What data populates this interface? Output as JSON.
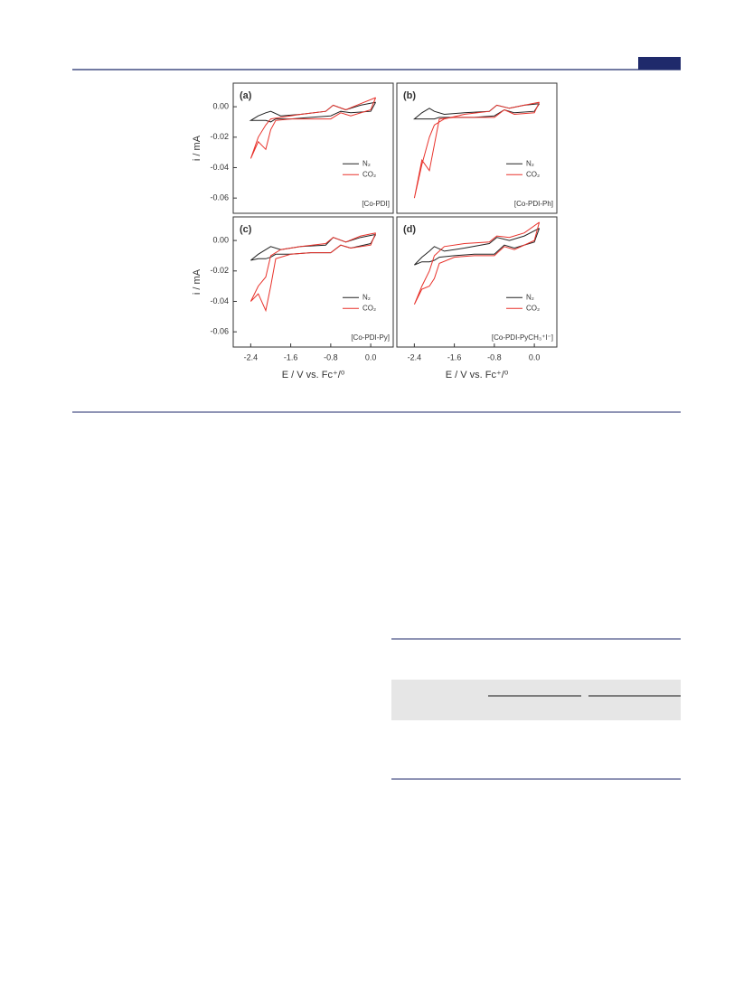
{
  "chart_data": [
    {
      "type": "line",
      "panel_label": "(a)",
      "annotation": "[Co-PDI]",
      "ylabel": "i / mA",
      "xlim": [
        -2.75,
        0.45
      ],
      "ylim": [
        -0.07,
        0.0155
      ],
      "yticks": [
        {
          "value": 0,
          "label": "0.00"
        },
        {
          "value": -0.02,
          "label": "-0.02"
        },
        {
          "value": -0.04,
          "label": "-0.04"
        },
        {
          "value": -0.06,
          "label": "-0.06"
        }
      ],
      "legend": "right",
      "x": [
        0.1,
        0.0,
        -0.4,
        -0.6,
        -0.8,
        -1.2,
        -1.6,
        -1.9,
        -2.0,
        -2.1,
        -2.25,
        -2.4,
        -2.25,
        -2.1,
        -2.0,
        -1.8,
        -1.4,
        -0.9,
        -0.75,
        -0.5,
        -0.2,
        0.1
      ],
      "series": [
        {
          "name": "N₂",
          "color": "#222222",
          "values": [
            0.003,
            -0.003,
            -0.004,
            -0.003,
            -0.006,
            -0.007,
            -0.008,
            -0.008,
            -0.01,
            -0.009,
            -0.009,
            -0.009,
            -0.006,
            -0.004,
            -0.003,
            -0.006,
            -0.005,
            -0.003,
            0.001,
            -0.002,
            0.001,
            0.003
          ]
        },
        {
          "name": "CO₂",
          "color": "#e8322b",
          "values": [
            0.006,
            -0.002,
            -0.006,
            -0.004,
            -0.008,
            -0.008,
            -0.008,
            -0.009,
            -0.015,
            -0.028,
            -0.023,
            -0.034,
            -0.02,
            -0.012,
            -0.008,
            -0.007,
            -0.005,
            -0.003,
            0.001,
            -0.002,
            0.002,
            0.006
          ]
        }
      ]
    },
    {
      "type": "line",
      "panel_label": "(b)",
      "annotation": "[Co-PDI-Ph]",
      "xlim": [
        -2.75,
        0.45
      ],
      "ylim": [
        -0.07,
        0.0155
      ],
      "legend": "right",
      "x": [
        0.1,
        0.0,
        -0.4,
        -0.6,
        -0.8,
        -1.2,
        -1.6,
        -1.9,
        -2.0,
        -2.1,
        -2.25,
        -2.4,
        -2.25,
        -2.1,
        -2.0,
        -1.8,
        -1.4,
        -0.9,
        -0.75,
        -0.5,
        -0.2,
        0.1
      ],
      "series": [
        {
          "name": "N₂",
          "color": "#222222",
          "values": [
            0.002,
            -0.003,
            -0.004,
            -0.002,
            -0.006,
            -0.007,
            -0.007,
            -0.007,
            -0.008,
            -0.008,
            -0.008,
            -0.008,
            -0.004,
            -0.001,
            -0.003,
            -0.005,
            -0.004,
            -0.003,
            0.001,
            -0.001,
            0.001,
            0.002
          ]
        },
        {
          "name": "CO₂",
          "color": "#e8322b",
          "values": [
            0.003,
            -0.004,
            -0.005,
            -0.002,
            -0.007,
            -0.007,
            -0.007,
            -0.008,
            -0.025,
            -0.042,
            -0.035,
            -0.06,
            -0.038,
            -0.02,
            -0.012,
            -0.008,
            -0.005,
            -0.003,
            0.001,
            -0.001,
            0.001,
            0.003
          ]
        }
      ]
    },
    {
      "type": "line",
      "panel_label": "(c)",
      "annotation": "[Co-PDI-Py]",
      "ylabel": "i / mA",
      "xlabel": "E / V vs. Fc⁺/⁰",
      "xlim": [
        -2.75,
        0.45
      ],
      "ylim": [
        -0.07,
        0.0155
      ],
      "xticks": [
        -2.4,
        -1.6,
        -0.8,
        {
          "value": 0,
          "label": "0.0"
        }
      ],
      "yticks": [
        {
          "value": 0,
          "label": "0.00"
        },
        {
          "value": -0.02,
          "label": "-0.02"
        },
        {
          "value": -0.04,
          "label": "-0.04"
        },
        {
          "value": -0.06,
          "label": "-0.06"
        }
      ],
      "legend": "right",
      "x": [
        0.1,
        0.0,
        -0.4,
        -0.6,
        -0.8,
        -1.2,
        -1.6,
        -1.9,
        -2.0,
        -2.1,
        -2.25,
        -2.4,
        -2.25,
        -2.1,
        -2.0,
        -1.8,
        -1.4,
        -0.9,
        -0.75,
        -0.5,
        -0.2,
        0.1
      ],
      "series": [
        {
          "name": "N₂",
          "color": "#222222",
          "values": [
            0.004,
            -0.002,
            -0.005,
            -0.003,
            -0.008,
            -0.008,
            -0.009,
            -0.009,
            -0.011,
            -0.012,
            -0.012,
            -0.013,
            -0.009,
            -0.006,
            -0.004,
            -0.006,
            -0.004,
            -0.003,
            0.002,
            -0.001,
            0.002,
            0.004
          ]
        },
        {
          "name": "CO₂",
          "color": "#e8322b",
          "values": [
            0.005,
            -0.003,
            -0.005,
            -0.003,
            -0.008,
            -0.008,
            -0.009,
            -0.012,
            -0.03,
            -0.046,
            -0.035,
            -0.04,
            -0.03,
            -0.024,
            -0.01,
            -0.006,
            -0.004,
            -0.002,
            0.002,
            -0.001,
            0.003,
            0.005
          ]
        }
      ]
    },
    {
      "type": "line",
      "panel_label": "(d)",
      "annotation": "[Co-PDI-PyCH₃⁺I⁻]",
      "xlabel": "E / V vs. Fc⁺/⁰",
      "xlim": [
        -2.75,
        0.45
      ],
      "ylim": [
        -0.07,
        0.0155
      ],
      "xticks": [
        -2.4,
        -1.6,
        -0.8,
        {
          "value": 0,
          "label": "0.0"
        }
      ],
      "legend": "right",
      "x": [
        0.1,
        0.0,
        -0.4,
        -0.6,
        -0.8,
        -1.2,
        -1.6,
        -1.9,
        -2.0,
        -2.1,
        -2.25,
        -2.4,
        -2.25,
        -2.1,
        -2.0,
        -1.8,
        -1.4,
        -0.9,
        -0.75,
        -0.5,
        -0.2,
        0.1
      ],
      "series": [
        {
          "name": "N₂",
          "color": "#222222",
          "values": [
            0.008,
            -0.001,
            -0.005,
            -0.003,
            -0.009,
            -0.009,
            -0.01,
            -0.011,
            -0.013,
            -0.014,
            -0.014,
            -0.016,
            -0.011,
            -0.007,
            -0.004,
            -0.007,
            -0.005,
            -0.002,
            0.002,
            0.0,
            0.003,
            0.008
          ]
        },
        {
          "name": "CO₂",
          "color": "#e8322b",
          "values": [
            0.012,
            0.0,
            -0.006,
            -0.004,
            -0.01,
            -0.01,
            -0.011,
            -0.015,
            -0.025,
            -0.03,
            -0.032,
            -0.042,
            -0.03,
            -0.02,
            -0.01,
            -0.004,
            -0.002,
            -0.001,
            0.003,
            0.002,
            0.005,
            0.012
          ]
        }
      ]
    }
  ]
}
